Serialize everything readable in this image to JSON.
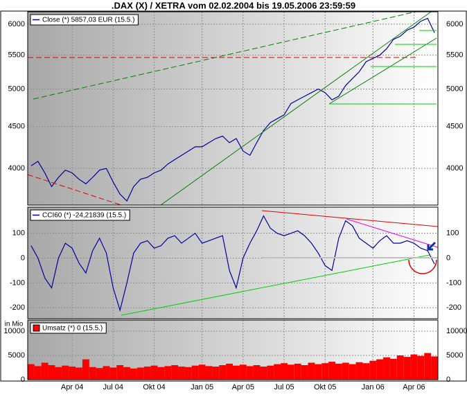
{
  "chart_data": [
    {
      "type": "line",
      "title": ".DAX (X) / XETRA vom 02.02.2004 bis 19.05.2006 23:59:59",
      "log_scale": true,
      "grid": true,
      "ylim": [
        3608,
        6213
      ],
      "yticks": [
        4000,
        4500,
        5000,
        5500,
        6000
      ],
      "series": [
        {
          "name": "Close (*) 5857,03 EUR (15.5.)",
          "color": "#0000a0",
          "values": [
            4030,
            4080,
            3950,
            3800,
            3900,
            3980,
            3950,
            3880,
            3830,
            3900,
            3980,
            4000,
            3850,
            3720,
            3650,
            3800,
            3880,
            3900,
            3950,
            3980,
            4050,
            4100,
            4150,
            4200,
            4250,
            4250,
            4300,
            4350,
            4380,
            4300,
            4350,
            4200,
            4150,
            4300,
            4450,
            4550,
            4600,
            4650,
            4800,
            4850,
            4900,
            4950,
            5000,
            4950,
            4850,
            4900,
            5050,
            5150,
            5250,
            5400,
            5450,
            5500,
            5600,
            5750,
            5800,
            5900,
            5950,
            6050,
            6100,
            5857
          ]
        }
      ]
    },
    {
      "type": "line",
      "grid": true,
      "ylim": [
        -244,
        205
      ],
      "yticks": [
        -200,
        -100,
        0,
        100
      ],
      "series": [
        {
          "name": "CCI60 (*) -24,21839 (15.5.)",
          "color": "#0000a0",
          "values": [
            50,
            0,
            -80,
            -120,
            0,
            60,
            40,
            -20,
            -60,
            30,
            80,
            20,
            -120,
            -210,
            -100,
            20,
            60,
            70,
            40,
            50,
            80,
            90,
            60,
            80,
            100,
            60,
            70,
            80,
            90,
            -50,
            -120,
            0,
            60,
            110,
            170,
            120,
            100,
            90,
            100,
            110,
            90,
            60,
            20,
            -30,
            -50,
            80,
            150,
            130,
            80,
            60,
            40,
            70,
            90,
            60,
            60,
            70,
            60,
            40,
            30,
            -24
          ]
        }
      ]
    },
    {
      "type": "bar",
      "grid": true,
      "ylabel": "in Mio",
      "ylim": [
        0,
        12286
      ],
      "yticks": [
        0,
        5000,
        10000
      ],
      "categories": [
        null,
        null,
        null,
        null,
        null,
        null,
        "Apr 04",
        null,
        null,
        null,
        null,
        null,
        "Jul 04",
        null,
        null,
        null,
        null,
        null,
        "Okt 04",
        null,
        null,
        null,
        null,
        null,
        null,
        "Jan 05",
        null,
        null,
        null,
        null,
        null,
        "Apr 05",
        null,
        null,
        null,
        null,
        null,
        "Jul 05",
        null,
        null,
        null,
        null,
        null,
        "Okt 05",
        null,
        null,
        null,
        null,
        null,
        null,
        "Jan 06",
        null,
        null,
        null,
        null,
        null,
        "Apr 06",
        null,
        null,
        null
      ],
      "series": [
        {
          "name": "Umsatz (*) 0 (15.5.)",
          "color": "#ff0000",
          "values": [
            3200,
            2800,
            3500,
            3000,
            2600,
            2900,
            2700,
            2500,
            4200,
            2600,
            2400,
            2800,
            2500,
            3000,
            2600,
            2300,
            2500,
            2700,
            2900,
            2600,
            2800,
            3000,
            2700,
            2600,
            2900,
            3100,
            2800,
            2700,
            3000,
            3300,
            2900,
            3100,
            2800,
            3000,
            2700,
            2900,
            3200,
            3400,
            3100,
            3300,
            3000,
            3500,
            3200,
            3400,
            3700,
            3300,
            3500,
            3200,
            3600,
            3400,
            3900,
            4200,
            4600,
            4300,
            5000,
            4700,
            5200,
            4900,
            5500,
            4800
          ]
        }
      ]
    }
  ]
}
